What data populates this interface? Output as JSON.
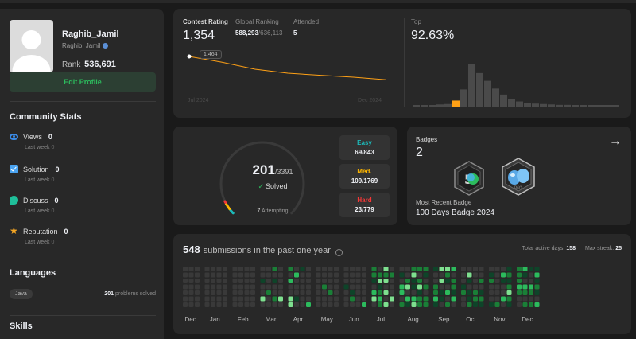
{
  "profile": {
    "username": "Raghib_Jamil",
    "handle": "Raghib_Jamil",
    "rank_label": "Rank",
    "rank_value": "536,691",
    "edit_label": "Edit Profile"
  },
  "community": {
    "title": "Community Stats",
    "items": [
      {
        "label": "Views",
        "value": "0",
        "sub_label": "Last week",
        "sub_value": "0"
      },
      {
        "label": "Solution",
        "value": "0",
        "sub_label": "Last week",
        "sub_value": "0"
      },
      {
        "label": "Discuss",
        "value": "0",
        "sub_label": "Last week",
        "sub_value": "0"
      },
      {
        "label": "Reputation",
        "value": "0",
        "sub_label": "Last week",
        "sub_value": "0"
      }
    ]
  },
  "languages": {
    "title": "Languages",
    "items": [
      {
        "name": "Java",
        "count": "201",
        "suffix": "problems solved"
      }
    ]
  },
  "skills": {
    "title": "Skills"
  },
  "contest": {
    "rating_label": "Contest Rating",
    "rating_value": "1,354",
    "global_label": "Global Ranking",
    "global_value": "588,293",
    "global_total": "/636,113",
    "attended_label": "Attended",
    "attended_value": "5",
    "tooltip": "1,464",
    "x_start": "Jul 2024",
    "x_end": "Dec 2024",
    "top_label": "Top",
    "top_value": "92.63%",
    "rating_series": [
      1500,
      1464,
      1420,
      1395,
      1382,
      1370,
      1354
    ],
    "distribution": [
      2,
      2,
      3,
      5,
      6,
      14,
      40,
      100,
      78,
      60,
      42,
      28,
      18,
      12,
      9,
      7,
      6,
      5,
      4,
      4,
      3,
      3,
      2,
      2,
      2,
      1
    ],
    "highlight_index": 5,
    "accent": "#ffa116"
  },
  "solved": {
    "solved_value": "201",
    "total": "/3391",
    "solved_label": "Solved",
    "attempting_value": "7",
    "attempting_label": "Attempting",
    "easy_label": "Easy",
    "easy_value": "69/843",
    "medium_label": "Med.",
    "medium_value": "109/1769",
    "hard_label": "Hard",
    "hard_value": "23/779",
    "easy_color": "#1cbaba",
    "medium_color": "#ffb700",
    "hard_color": "#f63737"
  },
  "badges": {
    "label": "Badges",
    "count": "2",
    "recent_label": "Most Recent Badge",
    "recent_name": "100 Days Badge 2024",
    "badge_icons": [
      "50-days-badge-icon",
      "100-days-badge-icon"
    ]
  },
  "submissions": {
    "count": "548",
    "text": "submissions in the past one year",
    "active_label": "Total active days:",
    "active_value": "158",
    "streak_label": "Max streak:",
    "streak_value": "25",
    "months": [
      "Dec",
      "Jan",
      "Feb",
      "Mar",
      "Apr",
      "May",
      "Jun",
      "Jul",
      "Aug",
      "Sep",
      "Oct",
      "Nov",
      "Dec"
    ]
  }
}
